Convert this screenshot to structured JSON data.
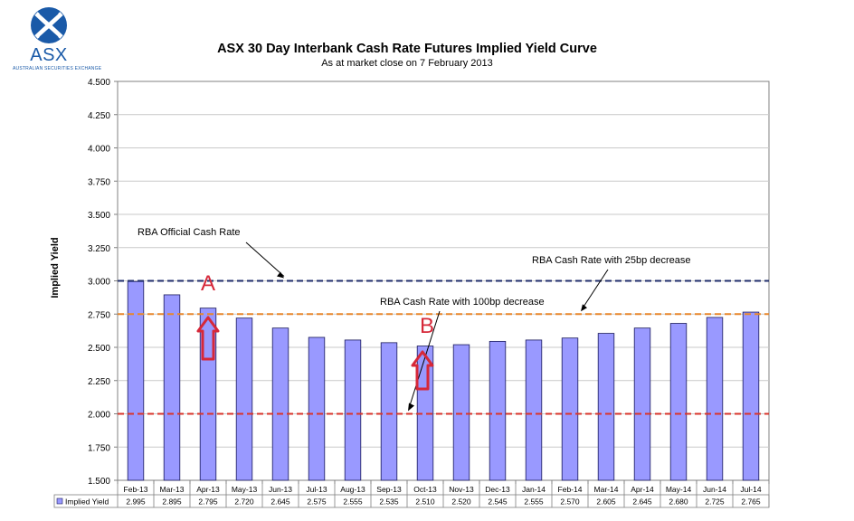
{
  "logo": {
    "wordmark": "ASX",
    "tagline": "AUSTRALIAN SECURITIES EXCHANGE"
  },
  "chart_data": {
    "type": "bar",
    "title": "ASX 30 Day Interbank Cash Rate Futures Implied Yield Curve",
    "subtitle": "As at market close on 7 February 2013",
    "ylabel": "Implied Yield",
    "ylim": [
      1.5,
      4.5
    ],
    "yticks": [
      "1.500",
      "1.750",
      "2.000",
      "2.250",
      "2.500",
      "2.750",
      "3.000",
      "3.250",
      "3.500",
      "3.750",
      "4.000",
      "4.250",
      "4.500"
    ],
    "grid": true,
    "categories": [
      "Feb-13",
      "Mar-13",
      "Apr-13",
      "May-13",
      "Jun-13",
      "Jul-13",
      "Aug-13",
      "Sep-13",
      "Oct-13",
      "Nov-13",
      "Dec-13",
      "Jan-14",
      "Feb-14",
      "Mar-14",
      "Apr-14",
      "May-14",
      "Jun-14",
      "Jul-14"
    ],
    "series": [
      {
        "name": "Implied Yield",
        "values": [
          2.995,
          2.895,
          2.795,
          2.72,
          2.645,
          2.575,
          2.555,
          2.535,
          2.51,
          2.52,
          2.545,
          2.555,
          2.57,
          2.605,
          2.645,
          2.68,
          2.725,
          2.765
        ],
        "labels": [
          "2.995",
          "2.895",
          "2.795",
          "2.720",
          "2.645",
          "2.575",
          "2.555",
          "2.535",
          "2.510",
          "2.520",
          "2.545",
          "2.555",
          "2.570",
          "2.605",
          "2.645",
          "2.680",
          "2.725",
          "2.765"
        ],
        "color": "#9999ff"
      }
    ],
    "reference_lines": [
      {
        "label": "RBA Official Cash Rate",
        "value": 3.0,
        "color": "#1f2d6b"
      },
      {
        "label": "RBA Cash Rate with 25bp decrease",
        "value": 2.75,
        "color": "#e8862a"
      },
      {
        "label": "RBA Cash Rate with 100bp decrease",
        "value": 2.0,
        "color": "#d9342b"
      }
    ],
    "annotations": [
      {
        "text": "A",
        "color": "#d62839"
      },
      {
        "text": "B",
        "color": "#d62839"
      }
    ]
  }
}
